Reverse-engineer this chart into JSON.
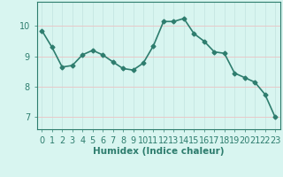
{
  "x": [
    0,
    1,
    2,
    3,
    4,
    5,
    6,
    7,
    8,
    9,
    10,
    11,
    12,
    13,
    14,
    15,
    16,
    17,
    18,
    19,
    20,
    21,
    22,
    23
  ],
  "y": [
    9.85,
    9.3,
    8.65,
    8.7,
    9.05,
    9.2,
    9.05,
    8.82,
    8.6,
    8.55,
    8.78,
    9.35,
    10.15,
    10.15,
    10.25,
    9.75,
    9.5,
    9.15,
    9.1,
    8.45,
    8.3,
    8.15,
    7.75,
    7.0
  ],
  "line_color": "#2e7d6e",
  "marker": "D",
  "marker_size": 2.5,
  "bg_color": "#d8f5f0",
  "grid_color_h": "#e8c8c8",
  "grid_color_v": "#c8e8e4",
  "xlabel": "Humidex (Indice chaleur)",
  "ylim": [
    6.6,
    10.8
  ],
  "xlim": [
    -0.5,
    23.5
  ],
  "yticks": [
    7,
    8,
    9,
    10
  ],
  "xticks": [
    0,
    1,
    2,
    3,
    4,
    5,
    6,
    7,
    8,
    9,
    10,
    11,
    12,
    13,
    14,
    15,
    16,
    17,
    18,
    19,
    20,
    21,
    22,
    23
  ],
  "xlabel_fontsize": 7.5,
  "tick_fontsize": 7,
  "linewidth": 1.2
}
